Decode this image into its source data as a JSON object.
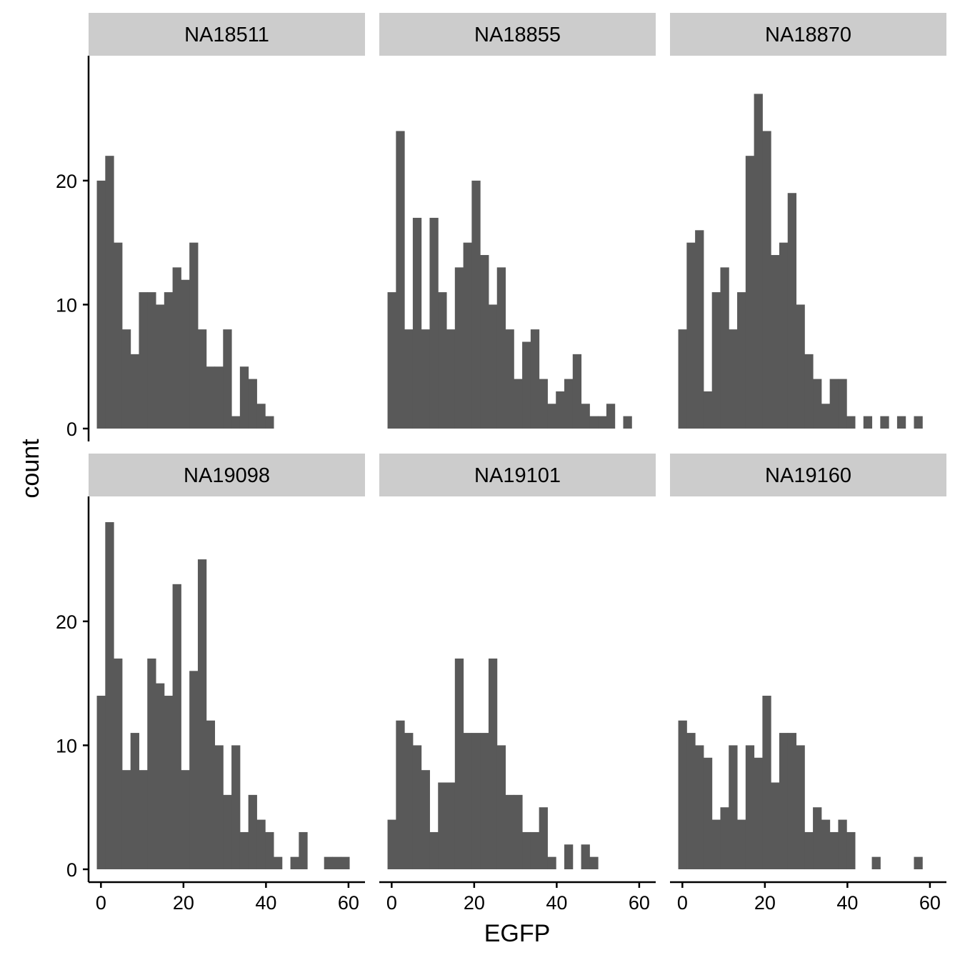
{
  "chart_data": {
    "type": "bar",
    "xlabel": "EGFP",
    "ylabel": "count",
    "xlim": [
      -3,
      64
    ],
    "ylim": [
      0,
      29.5
    ],
    "x_ticks": [
      0,
      20,
      40,
      60
    ],
    "y_ticks": [
      0,
      10,
      20
    ],
    "bin_start": -1,
    "bin_width": 2.04,
    "grid": false,
    "bar_color": "#595959",
    "strip_color": "#cccccc",
    "panels": [
      {
        "label": "NA18511",
        "counts": [
          20,
          22,
          15,
          8,
          6,
          11,
          11,
          10,
          11,
          13,
          12,
          15,
          8,
          5,
          5,
          8,
          1,
          5,
          4,
          2,
          1
        ]
      },
      {
        "label": "NA18855",
        "counts": [
          11,
          24,
          8,
          17,
          8,
          17,
          11,
          8,
          13,
          15,
          20,
          14,
          10,
          13,
          8,
          4,
          7,
          8,
          4,
          2,
          3,
          4,
          6,
          2,
          1,
          1,
          2,
          0,
          1
        ]
      },
      {
        "label": "NA18870",
        "counts": [
          8,
          15,
          16,
          3,
          11,
          13,
          8,
          11,
          22,
          27,
          24,
          14,
          15,
          19,
          10,
          6,
          4,
          2,
          4,
          4,
          1,
          0,
          1,
          0,
          1,
          0,
          1,
          0,
          1
        ]
      },
      {
        "label": "NA19098",
        "counts": [
          14,
          28,
          17,
          8,
          11,
          8,
          17,
          15,
          14,
          23,
          8,
          16,
          25,
          12,
          10,
          6,
          10,
          3,
          6,
          4,
          3,
          1,
          0,
          1,
          3,
          0,
          0,
          1,
          1,
          1
        ]
      },
      {
        "label": "NA19101",
        "counts": [
          4,
          12,
          11,
          10,
          8,
          3,
          7,
          7,
          17,
          11,
          11,
          11,
          17,
          10,
          6,
          6,
          3,
          3,
          5,
          1,
          0,
          2,
          0,
          2,
          1
        ]
      },
      {
        "label": "NA19160",
        "counts": [
          12,
          11,
          10,
          9,
          4,
          5,
          10,
          4,
          10,
          9,
          14,
          7,
          11,
          11,
          10,
          3,
          5,
          4,
          3,
          4,
          3,
          0,
          0,
          1,
          0,
          0,
          0,
          0,
          1
        ]
      }
    ]
  }
}
